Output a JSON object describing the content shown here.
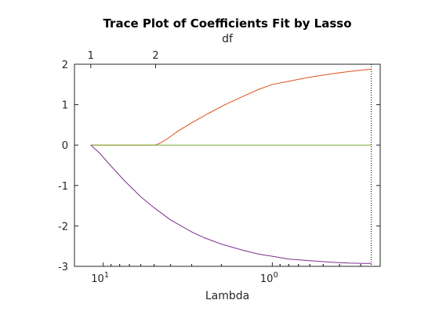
{
  "chart_data": {
    "type": "line",
    "title": "Trace Plot of Coefficients Fit by Lasso",
    "xlabel": "Lambda",
    "top_axis_label": "df",
    "ylabel": "",
    "x_scale": "log",
    "x_reversed": true,
    "xlim": [
      14.8,
      0.23
    ],
    "ylim": [
      -3,
      2
    ],
    "x_ticks": [
      {
        "value": 10,
        "base": "10",
        "exponent": "1"
      },
      {
        "value": 1,
        "base": "10",
        "exponent": "0"
      }
    ],
    "y_ticks": [
      {
        "value": 2,
        "label": "2"
      },
      {
        "value": 1,
        "label": "1"
      },
      {
        "value": 0,
        "label": "0"
      },
      {
        "value": -1,
        "label": "-1"
      },
      {
        "value": -2,
        "label": "-2"
      },
      {
        "value": -3,
        "label": "-3"
      }
    ],
    "top_ticks": [
      {
        "value": 11.85,
        "label": "1"
      },
      {
        "value": 4.9,
        "label": "2"
      }
    ],
    "vline_x": 0.26,
    "grid": false,
    "series": [
      {
        "color": "#d95319",
        "x": [
          11.85,
          4.9,
          4.6,
          4.2,
          3.6,
          3.0,
          2.4,
          1.9,
          1.5,
          1.2,
          1.0,
          0.8,
          0.6,
          0.45,
          0.35,
          0.26
        ],
        "y": [
          0,
          0,
          0.05,
          0.15,
          0.35,
          0.55,
          0.78,
          1.0,
          1.2,
          1.38,
          1.5,
          1.58,
          1.68,
          1.76,
          1.82,
          1.88
        ]
      },
      {
        "color": "#77ac30",
        "x": [
          11.85,
          0.26
        ],
        "y": [
          0,
          0
        ]
      },
      {
        "color": "#7e2f8e",
        "x": [
          11.85,
          10.5,
          9.0,
          7.5,
          6.0,
          5.0,
          4.0,
          3.0,
          2.5,
          2.0,
          1.5,
          1.2,
          1.0,
          0.8,
          0.6,
          0.45,
          0.35,
          0.26
        ],
        "y": [
          0,
          -0.2,
          -0.52,
          -0.88,
          -1.28,
          -1.55,
          -1.85,
          -2.15,
          -2.3,
          -2.45,
          -2.6,
          -2.7,
          -2.75,
          -2.82,
          -2.86,
          -2.9,
          -2.92,
          -2.93
        ]
      }
    ]
  }
}
